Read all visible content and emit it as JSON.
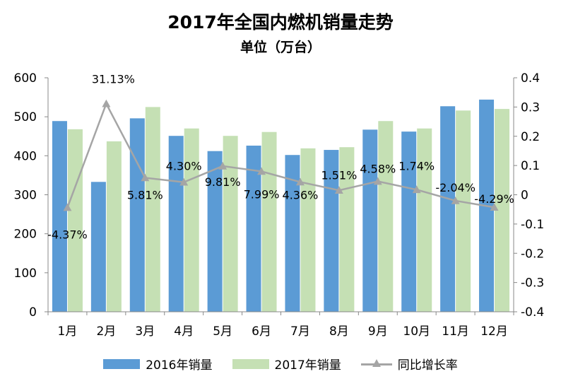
{
  "chart_data": {
    "type": "bar",
    "title": "2017年全国内燃机销量走势",
    "subtitle": "单位（万台）",
    "categories": [
      "1月",
      "2月",
      "3月",
      "4月",
      "5月",
      "6月",
      "7月",
      "8月",
      "9月",
      "10月",
      "11月",
      "12月"
    ],
    "series": [
      {
        "name": "2016年销量",
        "type": "bar",
        "axis": "left",
        "color": "#5b9bd5",
        "values": [
          489,
          333,
          496,
          451,
          412,
          426,
          402,
          415,
          467,
          462,
          527,
          544
        ]
      },
      {
        "name": "2017年销量",
        "type": "bar",
        "axis": "left",
        "color": "#c5e0b4",
        "values": [
          468,
          437,
          525,
          470,
          451,
          461,
          419,
          422,
          489,
          470,
          516,
          520
        ]
      },
      {
        "name": "同比增长率",
        "type": "line",
        "axis": "right",
        "color": "#a5a5a5",
        "values": [
          -0.0437,
          0.3113,
          0.0581,
          0.043,
          0.0981,
          0.0799,
          0.0436,
          0.0151,
          0.0458,
          0.0174,
          -0.0204,
          -0.0429
        ],
        "labels": [
          "-4.37%",
          "31.13%",
          "5.81%",
          "4.30%",
          "9.81%",
          "7.99%",
          "4.36%",
          "1.51%",
          "4.58%",
          "1.74%",
          "-2.04%",
          "-4.29%"
        ]
      }
    ],
    "ylim": [
      0,
      600
    ],
    "y_ticks": [
      "0",
      "100",
      "200",
      "300",
      "400",
      "500",
      "600"
    ],
    "y2lim": [
      -0.4,
      0.4
    ],
    "y2_ticks": [
      "-0.4",
      "-0.3",
      "-0.2",
      "-0.1",
      "0",
      "0.1",
      "0.2",
      "0.3",
      "0.4"
    ],
    "grid": false,
    "legend": "bottom"
  }
}
